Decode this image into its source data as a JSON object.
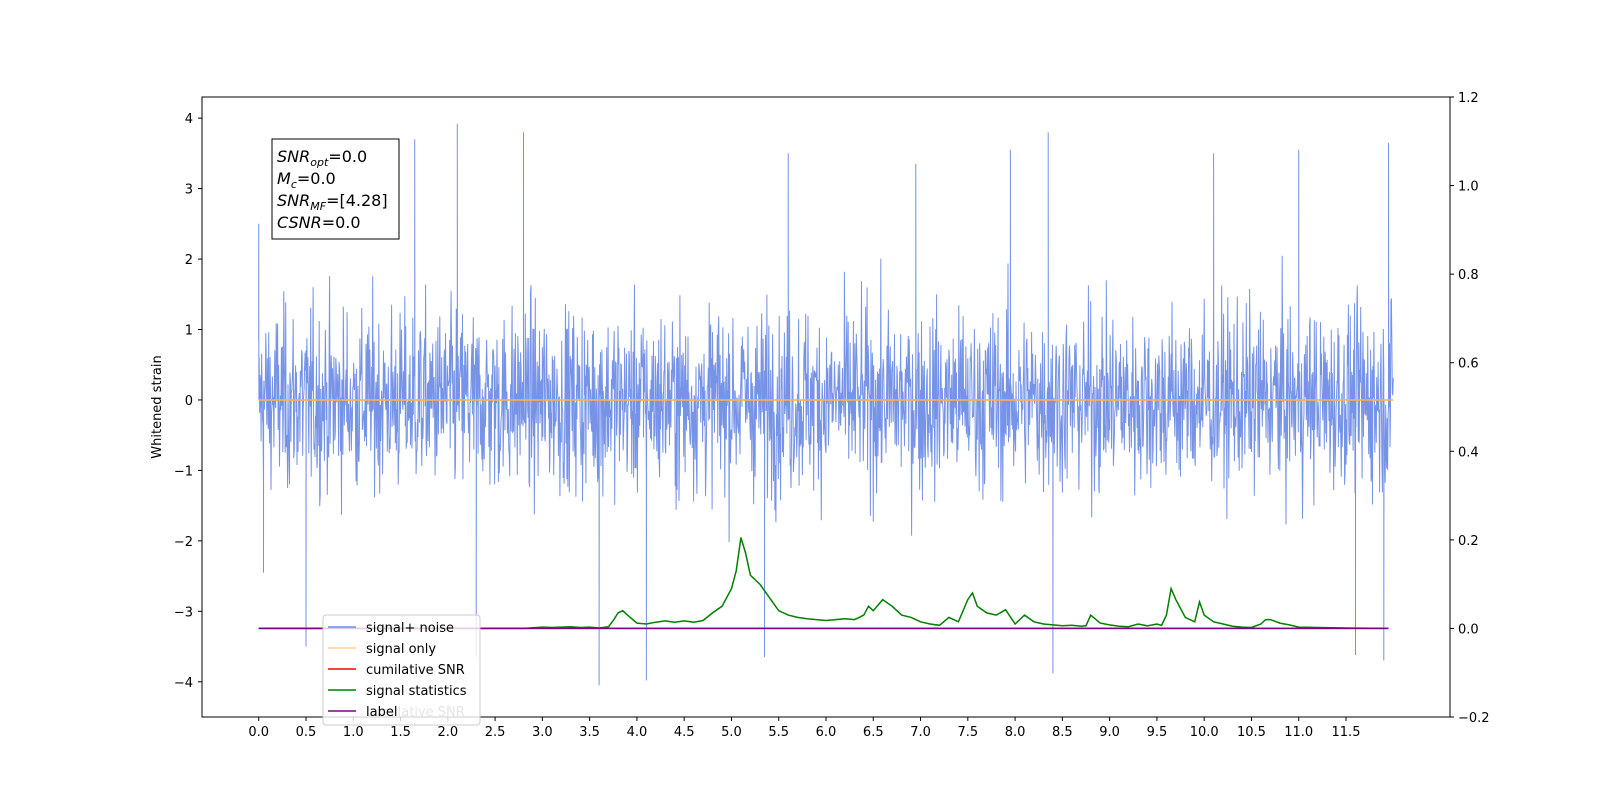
{
  "chart_data": {
    "type": "line",
    "title": "",
    "xlabel": "",
    "ylabel": "Whitened strain",
    "xlim": [
      -0.6,
      12.6
    ],
    "ylim": [
      -4.5,
      4.3
    ],
    "y2lim": [
      -0.2,
      1.2
    ],
    "grid": false,
    "legend_position": "lower-left",
    "x_ticks": [
      0.0,
      0.5,
      1.0,
      1.5,
      2.0,
      2.5,
      3.0,
      3.5,
      4.0,
      4.5,
      5.0,
      5.5,
      6.0,
      6.5,
      7.0,
      7.5,
      8.0,
      8.5,
      9.0,
      9.5,
      10.0,
      10.5,
      11.0,
      11.5
    ],
    "x_tick_labels": [
      "0.0",
      "0.5",
      "1.0",
      "1.5",
      "2.0",
      "2.5",
      "3.0",
      "3.5",
      "4.0",
      "4.5",
      "5.0",
      "5.5",
      "6.0",
      "6.5",
      "7.0",
      "7.5",
      "8.0",
      "8.5",
      "9.0",
      "9.5",
      "10.0",
      "10.5",
      "11.0",
      "11.5"
    ],
    "y_ticks": [
      -4,
      -3,
      -2,
      -1,
      0,
      1,
      2,
      3,
      4
    ],
    "y_tick_labels": [
      "−4",
      "−3",
      "−2",
      "−1",
      "0",
      "1",
      "2",
      "3",
      "4"
    ],
    "y2_ticks": [
      -0.2,
      0.0,
      0.2,
      0.4,
      0.6,
      0.8,
      1.0,
      1.2
    ],
    "y2_tick_labels": [
      "−0.2",
      "0.0",
      "0.2",
      "0.4",
      "0.6",
      "0.8",
      "1.0",
      "1.2"
    ],
    "series": [
      {
        "name": "signal+ noise",
        "color": "#6f8de6",
        "axis": "left",
        "x_range": [
          0.0,
          12.0
        ],
        "envelope_max_approx": 3.9,
        "envelope_min_approx": -4.05,
        "spikes": [
          {
            "x": 0.0,
            "y": 2.5
          },
          {
            "x": 0.05,
            "y": -2.45
          },
          {
            "x": 0.5,
            "y": -3.5
          },
          {
            "x": 1.65,
            "y": 3.7
          },
          {
            "x": 2.1,
            "y": 3.92
          },
          {
            "x": 2.3,
            "y": -3.65
          },
          {
            "x": 2.8,
            "y": 3.8
          },
          {
            "x": 3.6,
            "y": -4.05
          },
          {
            "x": 4.1,
            "y": -3.98
          },
          {
            "x": 5.35,
            "y": -3.65
          },
          {
            "x": 5.6,
            "y": 3.5
          },
          {
            "x": 6.95,
            "y": 3.35
          },
          {
            "x": 7.95,
            "y": 3.55
          },
          {
            "x": 8.35,
            "y": 3.8
          },
          {
            "x": 8.4,
            "y": -3.88
          },
          {
            "x": 10.1,
            "y": 3.5
          },
          {
            "x": 11.0,
            "y": 3.55
          },
          {
            "x": 11.6,
            "y": -3.62
          },
          {
            "x": 11.9,
            "y": -3.7
          },
          {
            "x": 11.95,
            "y": 3.65
          }
        ]
      },
      {
        "name": "signal only",
        "color": "#ffb347",
        "axis": "left",
        "x": [
          0.0,
          12.0
        ],
        "y": [
          0.0,
          0.0
        ]
      },
      {
        "name": "cumilative SNR",
        "color": "#ff0000",
        "axis": "right",
        "x": [
          0.0,
          11.95
        ],
        "y": [
          0.0,
          0.0
        ]
      },
      {
        "name": "signal statistics",
        "color": "#008000",
        "axis": "right",
        "x": [
          0.0,
          0.5,
          1.0,
          1.5,
          2.0,
          2.5,
          2.8,
          3.0,
          3.1,
          3.2,
          3.3,
          3.4,
          3.5,
          3.6,
          3.7,
          3.75,
          3.8,
          3.85,
          3.9,
          4.0,
          4.1,
          4.2,
          4.3,
          4.4,
          4.5,
          4.6,
          4.7,
          4.8,
          4.9,
          5.0,
          5.05,
          5.1,
          5.15,
          5.2,
          5.3,
          5.4,
          5.5,
          5.6,
          5.7,
          5.8,
          5.9,
          6.0,
          6.1,
          6.2,
          6.3,
          6.35,
          6.4,
          6.45,
          6.5,
          6.6,
          6.7,
          6.8,
          6.9,
          7.0,
          7.1,
          7.2,
          7.3,
          7.4,
          7.5,
          7.55,
          7.6,
          7.7,
          7.8,
          7.9,
          8.0,
          8.1,
          8.2,
          8.3,
          8.4,
          8.5,
          8.6,
          8.7,
          8.75,
          8.8,
          8.9,
          9.0,
          9.1,
          9.2,
          9.3,
          9.4,
          9.5,
          9.55,
          9.6,
          9.65,
          9.7,
          9.8,
          9.9,
          9.95,
          10.0,
          10.1,
          10.2,
          10.3,
          10.4,
          10.5,
          10.6,
          10.65,
          10.7,
          10.8,
          10.9,
          11.0,
          11.2,
          11.5,
          11.9
        ],
        "y": [
          0.0,
          0.0,
          0.0,
          0.0,
          0.0,
          0.0,
          0.0,
          0.003,
          0.002,
          0.003,
          0.004,
          0.002,
          0.003,
          0.001,
          0.004,
          0.018,
          0.035,
          0.04,
          0.03,
          0.012,
          0.01,
          0.014,
          0.017,
          0.014,
          0.017,
          0.014,
          0.018,
          0.035,
          0.05,
          0.09,
          0.13,
          0.205,
          0.17,
          0.12,
          0.1,
          0.07,
          0.04,
          0.03,
          0.025,
          0.022,
          0.02,
          0.018,
          0.02,
          0.022,
          0.02,
          0.025,
          0.03,
          0.05,
          0.04,
          0.065,
          0.05,
          0.03,
          0.025,
          0.015,
          0.01,
          0.007,
          0.025,
          0.015,
          0.065,
          0.08,
          0.05,
          0.035,
          0.03,
          0.042,
          0.01,
          0.03,
          0.015,
          0.01,
          0.008,
          0.006,
          0.007,
          0.005,
          0.006,
          0.03,
          0.012,
          0.008,
          0.005,
          0.004,
          0.01,
          0.006,
          0.01,
          0.007,
          0.03,
          0.09,
          0.065,
          0.025,
          0.015,
          0.06,
          0.03,
          0.015,
          0.01,
          0.005,
          0.003,
          0.002,
          0.01,
          0.02,
          0.02,
          0.012,
          0.008,
          0.003,
          0.002,
          0.001,
          0.0
        ]
      },
      {
        "name": "label",
        "color": "#800080",
        "axis": "right",
        "x": [
          0.0,
          11.95
        ],
        "y": [
          0.0,
          0.0
        ]
      }
    ],
    "legend_hidden_entry": "cumilative SNR",
    "annotations": [
      {
        "label_main": "SNR",
        "label_sub": "opt",
        "suffix": "=0.0"
      },
      {
        "label_main": "M",
        "label_sub": "c",
        "suffix": "=0.0"
      },
      {
        "label_main": "SNR",
        "label_sub": "MF",
        "suffix": "=[4.28]"
      },
      {
        "label_main": "CSNR",
        "label_sub": "",
        "suffix": "=0.0"
      }
    ]
  },
  "colors": {
    "axes": "#000000",
    "background": "#ffffff",
    "legend_border": "#cccccc"
  }
}
